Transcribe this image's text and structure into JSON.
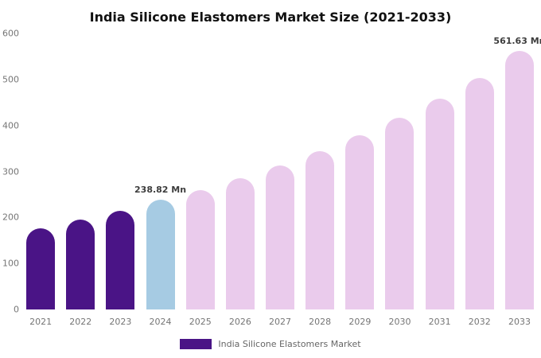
{
  "chart_data": {
    "type": "bar",
    "title": "India Silicone Elastomers Market Size (2021-2033)",
    "categories": [
      "2021",
      "2022",
      "2023",
      "2024",
      "2025",
      "2026",
      "2027",
      "2028",
      "2029",
      "2030",
      "2031",
      "2032",
      "2033"
    ],
    "values": [
      176,
      195,
      214,
      238.82,
      259,
      285,
      313,
      344,
      379,
      417,
      458,
      503,
      561.63
    ],
    "xlabel": "",
    "ylabel": "",
    "ylim": [
      0,
      600
    ],
    "yticks": [
      0,
      100,
      200,
      300,
      400,
      500,
      600
    ],
    "grid": false,
    "bar_colors": [
      "#4a1486",
      "#4a1486",
      "#4a1486",
      "#a6cbe3",
      "#eacbec",
      "#eacbec",
      "#eacbec",
      "#eacbec",
      "#eacbec",
      "#eacbec",
      "#eacbec",
      "#eacbec",
      "#eacbec"
    ],
    "annotations": [
      {
        "category": "2024",
        "text": "238.82 Mn"
      },
      {
        "category": "2033",
        "text": "561.63 Mn"
      }
    ],
    "legend": {
      "position": "bottom",
      "label": "India Silicone Elastomers Market",
      "marker_color": "#4a1486"
    }
  }
}
